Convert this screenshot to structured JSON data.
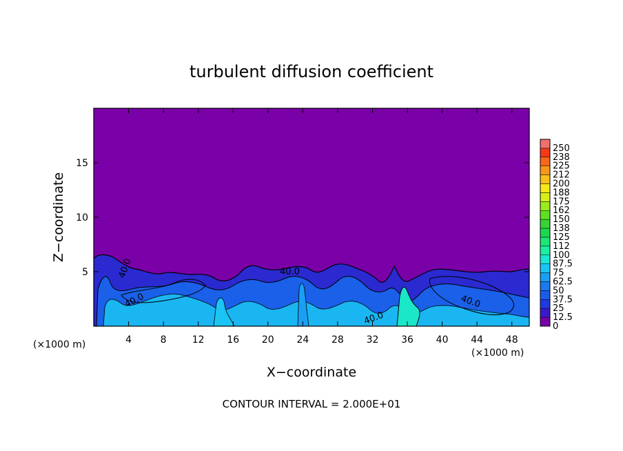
{
  "chart_data": {
    "type": "heatmap",
    "title": "turbulent diffusion coefficient",
    "xlabel": "X−coordinate",
    "ylabel": "Z−coordinate",
    "x_unit": "(×1000 m)",
    "x_unit_right": "(×1000 m)",
    "footer": "CONTOUR INTERVAL = 2.000E+01",
    "xlim": [
      0,
      50
    ],
    "ylim": [
      0,
      20
    ],
    "x_ticks": [
      4,
      8,
      12,
      16,
      20,
      24,
      28,
      32,
      36,
      40,
      44,
      48
    ],
    "y_ticks": [
      5,
      10,
      15
    ],
    "grid": false,
    "contour_labels": [
      "40.0",
      "40.0",
      "40.0",
      "40.0",
      "40.0"
    ],
    "colorbar": {
      "levels": [
        "0",
        "12.5",
        "25",
        "37.5",
        "50",
        "62.5",
        "75",
        "87.5",
        "100",
        "112",
        "125",
        "138",
        "150",
        "162",
        "175",
        "188",
        "200",
        "212",
        "225",
        "238",
        "250"
      ],
      "colors": [
        "#7a00a8",
        "#3a1ac8",
        "#1f3ae0",
        "#1a5be8",
        "#1a7af0",
        "#1a9ff5",
        "#1ac5f5",
        "#1ae6d5",
        "#1af0a0",
        "#1ae878",
        "#1ad850",
        "#34d434",
        "#5ee020",
        "#9aec18",
        "#d4f018",
        "#f8e818",
        "#f8c018",
        "#f89818",
        "#f86818",
        "#f83818",
        "#f07070"
      ]
    }
  }
}
